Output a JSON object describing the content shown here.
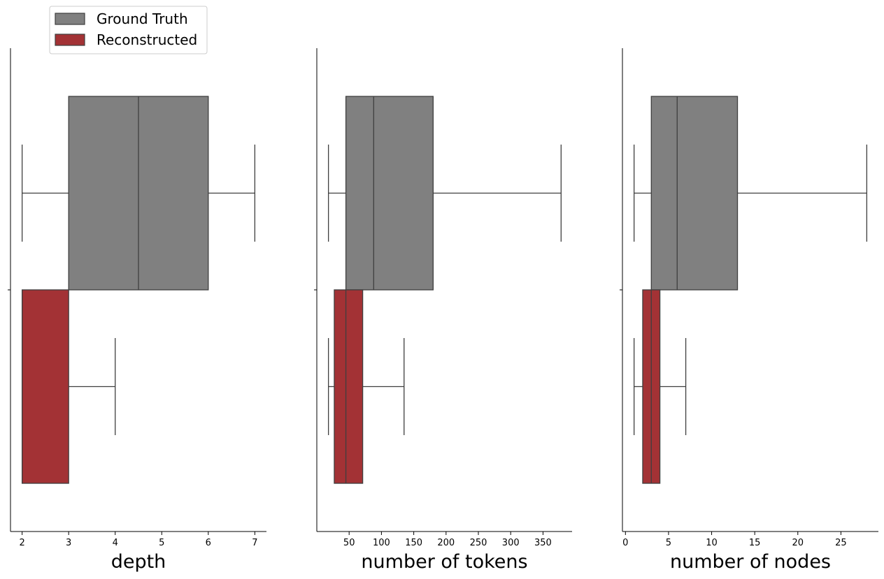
{
  "legend": {
    "location": "top-left",
    "entries": [
      {
        "label": "Ground Truth",
        "color": "#808080"
      },
      {
        "label": "Reconstructed",
        "color": "#a33235"
      }
    ]
  },
  "chart_data": [
    {
      "type": "boxplot",
      "orientation": "horizontal",
      "xlabel": "depth",
      "xlim": [
        1.75,
        7.25
      ],
      "xticks": [
        2,
        3,
        4,
        5,
        6,
        7
      ],
      "series": [
        {
          "name": "Ground Truth",
          "color": "#808080",
          "whisker_low": 2,
          "q1": 3,
          "median": 4.5,
          "q3": 6,
          "whisker_high": 7
        },
        {
          "name": "Reconstructed",
          "color": "#a33235",
          "whisker_low": 2,
          "q1": 2,
          "median": 2,
          "q3": 3,
          "whisker_high": 4
        }
      ]
    },
    {
      "type": "boxplot",
      "orientation": "horizontal",
      "xlabel": "number of tokens",
      "xlim": [
        0,
        395
      ],
      "xticks": [
        50,
        100,
        150,
        200,
        250,
        300,
        350
      ],
      "series": [
        {
          "name": "Ground Truth",
          "color": "#808080",
          "whisker_low": 18,
          "q1": 45,
          "median": 88,
          "q3": 180,
          "whisker_high": 378
        },
        {
          "name": "Reconstructed",
          "color": "#a33235",
          "whisker_low": 18,
          "q1": 27,
          "median": 45,
          "q3": 71,
          "whisker_high": 135
        }
      ]
    },
    {
      "type": "boxplot",
      "orientation": "horizontal",
      "xlabel": "number of nodes",
      "xlim": [
        -0.35,
        29.35
      ],
      "xticks": [
        0,
        5,
        10,
        15,
        20,
        25
      ],
      "series": [
        {
          "name": "Ground Truth",
          "color": "#808080",
          "whisker_low": 1,
          "q1": 3,
          "median": 6,
          "q3": 13,
          "whisker_high": 28
        },
        {
          "name": "Reconstructed",
          "color": "#a33235",
          "whisker_low": 1,
          "q1": 2,
          "median": 3,
          "q3": 4,
          "whisker_high": 7
        }
      ]
    }
  ]
}
